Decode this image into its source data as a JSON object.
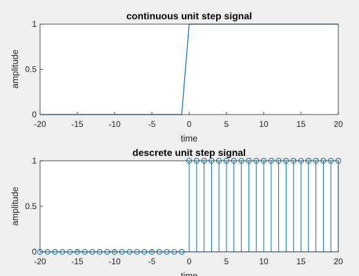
{
  "chart_data": [
    {
      "type": "line",
      "title": "continuous unit step signal",
      "xlabel": "time",
      "ylabel": "amplitude",
      "xlim": [
        -20,
        20
      ],
      "ylim": [
        0,
        1
      ],
      "xticks": [
        "-20",
        "-15",
        "-10",
        "-5",
        "0",
        "5",
        "10",
        "15",
        "20"
      ],
      "yticks": [
        "0",
        "0.5",
        "1"
      ],
      "grid": false,
      "series": [
        {
          "x": [
            -20,
            -1,
            0,
            20
          ],
          "y": [
            0,
            0,
            1,
            1
          ]
        }
      ],
      "line_color": "#0072bd"
    },
    {
      "type": "stem",
      "title": "descrete unit step signal",
      "xlabel": "time",
      "ylabel": "amplitude",
      "xlim": [
        -20,
        20
      ],
      "ylim": [
        0,
        1
      ],
      "xticks": [
        "-20",
        "-15",
        "-10",
        "-5",
        "0",
        "5",
        "10",
        "15",
        "20"
      ],
      "yticks": [
        "0",
        "0.5",
        "1"
      ],
      "grid": false,
      "series": [
        {
          "x": [
            -20,
            -19,
            -18,
            -17,
            -16,
            -15,
            -14,
            -13,
            -12,
            -11,
            -10,
            -9,
            -8,
            -7,
            -6,
            -5,
            -4,
            -3,
            -2,
            -1,
            0,
            1,
            2,
            3,
            4,
            5,
            6,
            7,
            8,
            9,
            10,
            11,
            12,
            13,
            14,
            15,
            16,
            17,
            18,
            19,
            20
          ],
          "y": [
            0,
            0,
            0,
            0,
            0,
            0,
            0,
            0,
            0,
            0,
            0,
            0,
            0,
            0,
            0,
            0,
            0,
            0,
            0,
            0,
            1,
            1,
            1,
            1,
            1,
            1,
            1,
            1,
            1,
            1,
            1,
            1,
            1,
            1,
            1,
            1,
            1,
            1,
            1,
            1,
            1
          ]
        }
      ],
      "line_color": "#0072bd"
    }
  ]
}
